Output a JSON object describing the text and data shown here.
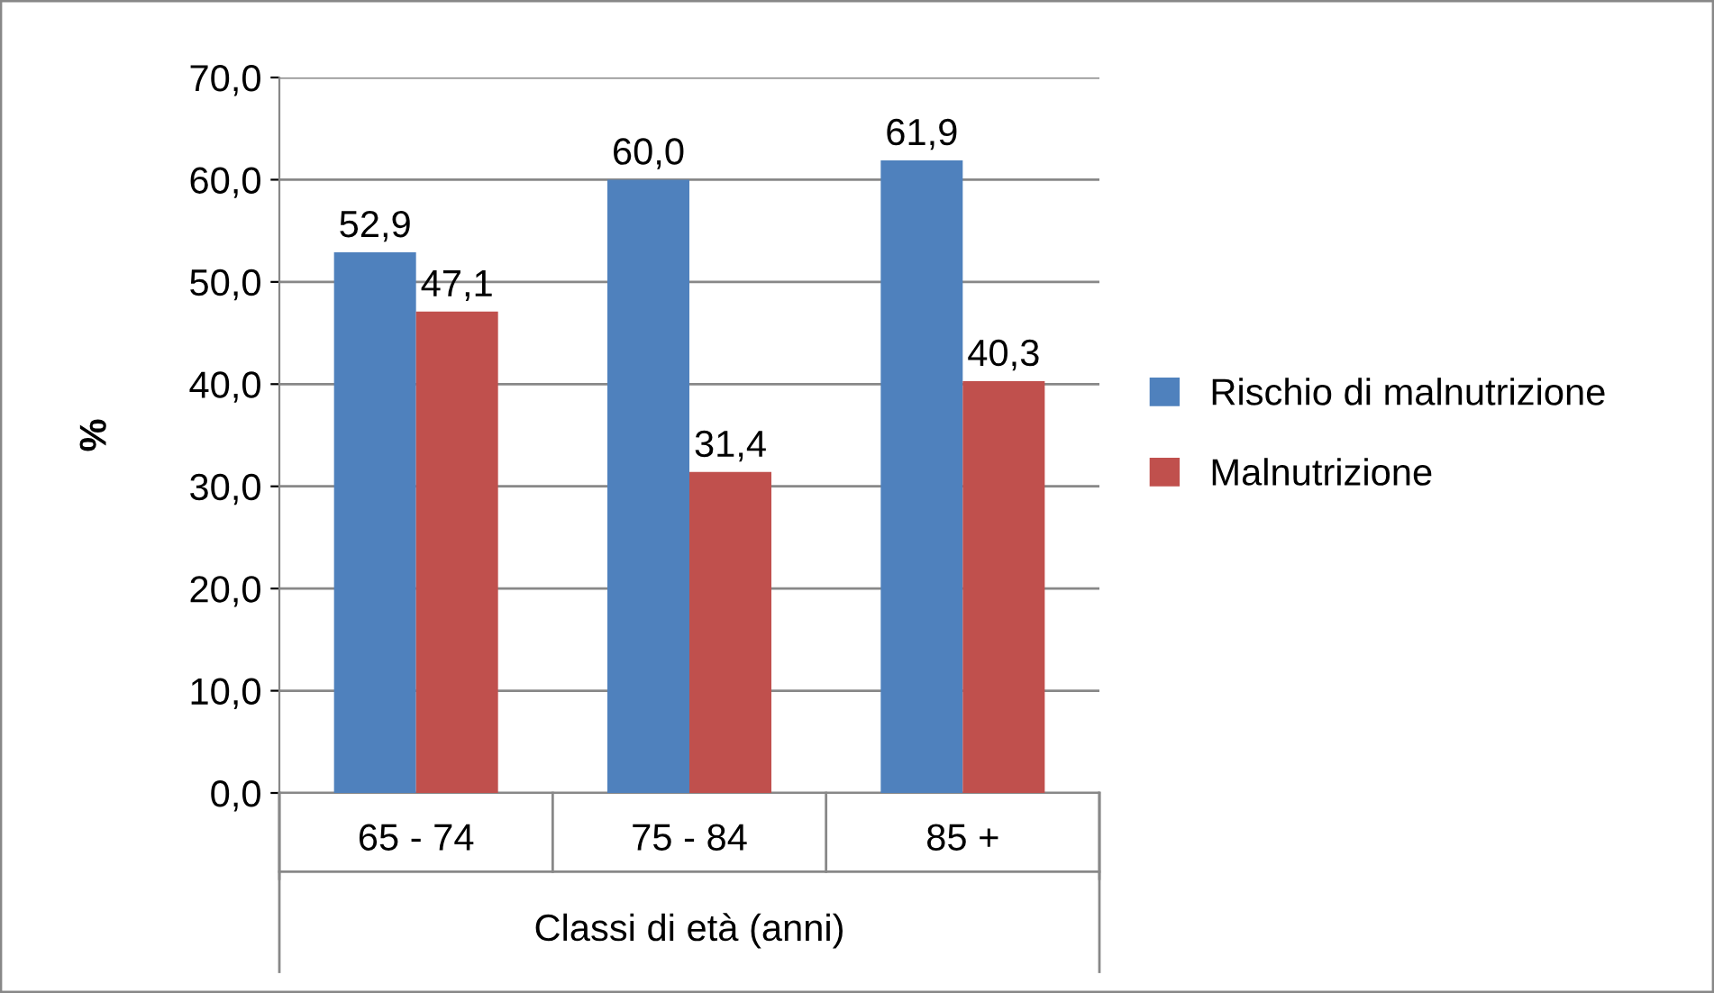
{
  "chart_data": {
    "type": "bar",
    "ylabel": "%",
    "xlabel": "Classi di età (anni)",
    "categories": [
      "65 - 74",
      "75 - 84",
      "85 +"
    ],
    "series": [
      {
        "name": "Rischio di malnutrizione",
        "color": "#4f81bd",
        "values": [
          52.9,
          60.0,
          61.9
        ],
        "value_labels": [
          "52,9",
          "60,0",
          "61,9"
        ]
      },
      {
        "name": "Malnutrizione",
        "color": "#c0504d",
        "values": [
          47.1,
          31.4,
          40.3
        ],
        "value_labels": [
          "47,1",
          "31,4",
          "40,3"
        ]
      }
    ],
    "ylim": [
      0,
      70
    ],
    "yticks": [
      {
        "value": 0,
        "label": "0,0"
      },
      {
        "value": 10,
        "label": "10,0"
      },
      {
        "value": 20,
        "label": "20,0"
      },
      {
        "value": 30,
        "label": "30,0"
      },
      {
        "value": 40,
        "label": "40,0"
      },
      {
        "value": 50,
        "label": "50,0"
      },
      {
        "value": 60,
        "label": "60,0"
      },
      {
        "value": 70,
        "label": "70,0"
      }
    ],
    "grid": "y",
    "legend": "right"
  }
}
